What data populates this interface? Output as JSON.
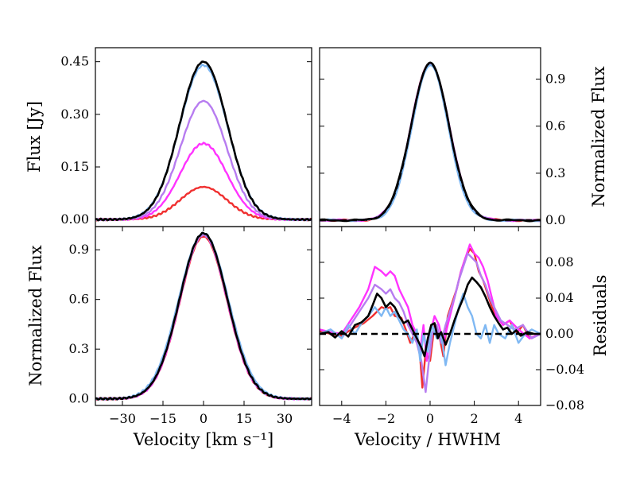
{
  "chart_data": [
    {
      "panel": "top-left",
      "type": "line",
      "xlabel": "",
      "ylabel": "Flux [Jy]",
      "xlim": [
        -40,
        40
      ],
      "ylim": [
        -0.02,
        0.49
      ],
      "yticks": [
        0.0,
        0.15,
        0.3,
        0.45
      ],
      "ytick_labels": [
        "0.00",
        "0.15",
        "0.30",
        "0.45"
      ],
      "series": [
        {
          "name": "red",
          "color": "#f03030",
          "profile": "gauss",
          "amp": 0.093,
          "sigma": 8.6
        },
        {
          "name": "magenta",
          "color": "#ff33ff",
          "profile": "gauss",
          "amp": 0.217,
          "sigma": 8.6
        },
        {
          "name": "purple",
          "color": "#b77cf0",
          "profile": "gauss",
          "amp": 0.338,
          "sigma": 8.6
        },
        {
          "name": "light-blue",
          "color": "#7fb8f3",
          "profile": "gauss",
          "amp": 0.44,
          "sigma": 8.9
        },
        {
          "name": "black",
          "color": "#000000",
          "profile": "gauss",
          "amp": 0.45,
          "sigma": 8.8
        }
      ]
    },
    {
      "panel": "top-right",
      "type": "line",
      "xlabel": "",
      "ylabel": "Normalized Flux",
      "xlim": [
        -5,
        5
      ],
      "ylim": [
        -0.04,
        1.1
      ],
      "yticks": [
        0.0,
        0.3,
        0.6,
        0.9
      ],
      "ytick_labels": [
        "0.0",
        "0.3",
        "0.6",
        "0.9"
      ],
      "series": [
        {
          "name": "red",
          "color": "#f03030",
          "profile": "gauss",
          "amp": 1.0,
          "sigma": 0.85
        },
        {
          "name": "magenta",
          "color": "#ff33ff",
          "profile": "gauss",
          "amp": 1.0,
          "sigma": 0.86
        },
        {
          "name": "purple",
          "color": "#b77cf0",
          "profile": "gauss",
          "amp": 1.0,
          "sigma": 0.85
        },
        {
          "name": "light-blue",
          "color": "#7fb8f3",
          "profile": "gauss",
          "amp": 0.99,
          "sigma": 0.82
        },
        {
          "name": "black",
          "color": "#000000",
          "profile": "gauss",
          "amp": 1.0,
          "sigma": 0.86
        },
        {
          "name": "gaussian-fit",
          "color": "#000000",
          "dashed": true,
          "profile": "gauss",
          "amp": 1.0,
          "sigma": 0.85
        }
      ]
    },
    {
      "panel": "bottom-left",
      "type": "line",
      "xlabel": "Velocity [km s⁻¹]",
      "ylabel": "Normalized Flux",
      "xlim": [
        -40,
        40
      ],
      "ylim": [
        -0.04,
        1.04
      ],
      "xticks": [
        -30,
        -15,
        0,
        15,
        30
      ],
      "xtick_labels": [
        "−30",
        "−15",
        "0",
        "15",
        "30"
      ],
      "yticks": [
        0.0,
        0.3,
        0.6,
        0.9
      ],
      "ytick_labels": [
        "0.0",
        "0.3",
        "0.6",
        "0.9"
      ],
      "series": [
        {
          "name": "red",
          "color": "#f03030",
          "profile": "gauss",
          "amp": 0.98,
          "sigma": 8.7
        },
        {
          "name": "magenta",
          "color": "#ff33ff",
          "profile": "gauss",
          "amp": 0.99,
          "sigma": 8.7
        },
        {
          "name": "purple",
          "color": "#b77cf0",
          "profile": "gauss",
          "amp": 0.99,
          "sigma": 8.8
        },
        {
          "name": "light-blue",
          "color": "#7fb8f3",
          "profile": "gauss",
          "amp": 1.0,
          "sigma": 9.1
        },
        {
          "name": "black",
          "color": "#000000",
          "profile": "gauss",
          "amp": 1.0,
          "sigma": 8.8
        }
      ]
    },
    {
      "panel": "bottom-right",
      "type": "line",
      "xlabel": "Velocity / HWHM",
      "ylabel": "Residuals",
      "xlim": [
        -5,
        5
      ],
      "ylim": [
        -0.08,
        0.12
      ],
      "xticks": [
        -4,
        -2,
        0,
        2,
        4
      ],
      "xtick_labels": [
        "−4",
        "−2",
        "0",
        "2",
        "4"
      ],
      "yticks": [
        -0.08,
        -0.04,
        0.0,
        0.04,
        0.08
      ],
      "ytick_labels": [
        "−0.08",
        "−0.04",
        "0.00",
        "0.04",
        "0.08"
      ],
      "series": [
        {
          "name": "red",
          "color": "#f03030",
          "points": [
            [
              -5,
              0.003
            ],
            [
              -4.5,
              0.0
            ],
            [
              -4,
              -0.002
            ],
            [
              -3.5,
              0.006
            ],
            [
              -3,
              0.012
            ],
            [
              -2.6,
              0.02
            ],
            [
              -2.2,
              0.03
            ],
            [
              -2,
              0.028
            ],
            [
              -1.8,
              0.03
            ],
            [
              -1.6,
              0.02
            ],
            [
              -1.3,
              0.018
            ],
            [
              -1.1,
              0.005
            ],
            [
              -0.9,
              -0.01
            ],
            [
              -0.7,
              0.0
            ],
            [
              -0.5,
              -0.01
            ],
            [
              -0.35,
              -0.06
            ],
            [
              -0.2,
              -0.02
            ],
            [
              0,
              -0.03
            ],
            [
              0.2,
              0.01
            ],
            [
              0.4,
              0.0
            ],
            [
              0.6,
              -0.025
            ],
            [
              0.8,
              0.02
            ],
            [
              1.0,
              0.035
            ],
            [
              1.2,
              0.05
            ],
            [
              1.4,
              0.07
            ],
            [
              1.6,
              0.085
            ],
            [
              1.8,
              0.095
            ],
            [
              2.0,
              0.09
            ],
            [
              2.2,
              0.07
            ],
            [
              2.4,
              0.06
            ],
            [
              2.6,
              0.045
            ],
            [
              2.8,
              0.03
            ],
            [
              3.0,
              0.02
            ],
            [
              3.3,
              0.01
            ],
            [
              3.6,
              0.015
            ],
            [
              3.9,
              0.0
            ],
            [
              4.2,
              0.01
            ],
            [
              4.5,
              -0.005
            ],
            [
              5,
              0.0
            ]
          ]
        },
        {
          "name": "magenta",
          "color": "#ff33ff",
          "points": [
            [
              -5,
              0.005
            ],
            [
              -4.5,
              0.002
            ],
            [
              -4,
              0.0
            ],
            [
              -3.6,
              0.015
            ],
            [
              -3.2,
              0.03
            ],
            [
              -2.8,
              0.05
            ],
            [
              -2.5,
              0.075
            ],
            [
              -2.2,
              0.07
            ],
            [
              -2.0,
              0.065
            ],
            [
              -1.8,
              0.07
            ],
            [
              -1.6,
              0.065
            ],
            [
              -1.4,
              0.05
            ],
            [
              -1.2,
              0.04
            ],
            [
              -1.0,
              0.03
            ],
            [
              -0.8,
              0.01
            ],
            [
              -0.6,
              0.0
            ],
            [
              -0.45,
              -0.02
            ],
            [
              -0.3,
              0.01
            ],
            [
              -0.15,
              -0.03
            ],
            [
              0,
              0.0
            ],
            [
              0.2,
              0.02
            ],
            [
              0.4,
              0.01
            ],
            [
              0.6,
              -0.01
            ],
            [
              0.8,
              0.01
            ],
            [
              1.0,
              0.03
            ],
            [
              1.2,
              0.05
            ],
            [
              1.4,
              0.07
            ],
            [
              1.6,
              0.085
            ],
            [
              1.8,
              0.1
            ],
            [
              2.0,
              0.09
            ],
            [
              2.2,
              0.085
            ],
            [
              2.4,
              0.075
            ],
            [
              2.6,
              0.06
            ],
            [
              2.8,
              0.04
            ],
            [
              3.0,
              0.02
            ],
            [
              3.3,
              0.01
            ],
            [
              3.6,
              0.015
            ],
            [
              4.0,
              0.005
            ],
            [
              4.5,
              -0.005
            ],
            [
              5,
              0.0
            ]
          ]
        },
        {
          "name": "purple",
          "color": "#b77cf0",
          "points": [
            [
              -5,
              0.0
            ],
            [
              -4.5,
              0.005
            ],
            [
              -4,
              -0.005
            ],
            [
              -3.6,
              0.01
            ],
            [
              -3.2,
              0.025
            ],
            [
              -2.8,
              0.04
            ],
            [
              -2.5,
              0.055
            ],
            [
              -2.2,
              0.05
            ],
            [
              -2.0,
              0.045
            ],
            [
              -1.8,
              0.05
            ],
            [
              -1.6,
              0.04
            ],
            [
              -1.4,
              0.035
            ],
            [
              -1.2,
              0.025
            ],
            [
              -1.0,
              0.01
            ],
            [
              -0.8,
              0.0
            ],
            [
              -0.6,
              -0.01
            ],
            [
              -0.4,
              -0.03
            ],
            [
              -0.2,
              -0.065
            ],
            [
              -0.05,
              -0.03
            ],
            [
              0.1,
              0.0
            ],
            [
              0.3,
              0.01
            ],
            [
              0.5,
              -0.01
            ],
            [
              0.7,
              0.01
            ],
            [
              0.9,
              0.025
            ],
            [
              1.1,
              0.04
            ],
            [
              1.3,
              0.06
            ],
            [
              1.5,
              0.075
            ],
            [
              1.7,
              0.09
            ],
            [
              1.9,
              0.085
            ],
            [
              2.1,
              0.08
            ],
            [
              2.3,
              0.065
            ],
            [
              2.5,
              0.055
            ],
            [
              2.7,
              0.04
            ],
            [
              2.9,
              0.03
            ],
            [
              3.2,
              0.015
            ],
            [
              3.5,
              0.01
            ],
            [
              3.8,
              0.005
            ],
            [
              4.2,
              0.01
            ],
            [
              4.6,
              -0.005
            ],
            [
              5,
              0.0
            ]
          ]
        },
        {
          "name": "light-blue",
          "color": "#7fb8f3",
          "points": [
            [
              -5,
              0.0
            ],
            [
              -4.5,
              0.005
            ],
            [
              -4,
              -0.005
            ],
            [
              -3.7,
              0.01
            ],
            [
              -3.4,
              0.0
            ],
            [
              -3.1,
              0.012
            ],
            [
              -2.8,
              0.02
            ],
            [
              -2.5,
              0.03
            ],
            [
              -2.2,
              0.02
            ],
            [
              -2.0,
              0.03
            ],
            [
              -1.8,
              0.02
            ],
            [
              -1.6,
              0.025
            ],
            [
              -1.4,
              0.015
            ],
            [
              -1.2,
              0.005
            ],
            [
              -1.0,
              0.0
            ],
            [
              -0.8,
              -0.01
            ],
            [
              -0.6,
              0.005
            ],
            [
              -0.45,
              -0.03
            ],
            [
              -0.3,
              0.0
            ],
            [
              -0.1,
              -0.02
            ],
            [
              0.1,
              0.01
            ],
            [
              0.3,
              -0.005
            ],
            [
              0.5,
              0.0
            ],
            [
              0.7,
              -0.035
            ],
            [
              0.9,
              -0.01
            ],
            [
              1.1,
              0.01
            ],
            [
              1.3,
              0.03
            ],
            [
              1.5,
              0.045
            ],
            [
              1.7,
              0.03
            ],
            [
              1.9,
              0.02
            ],
            [
              2.1,
              0.0
            ],
            [
              2.3,
              -0.005
            ],
            [
              2.5,
              0.01
            ],
            [
              2.7,
              -0.01
            ],
            [
              2.9,
              0.01
            ],
            [
              3.1,
              0.0
            ],
            [
              3.4,
              -0.005
            ],
            [
              3.7,
              0.01
            ],
            [
              4.0,
              -0.01
            ],
            [
              4.3,
              0.0
            ],
            [
              4.6,
              0.005
            ],
            [
              5,
              0.0
            ]
          ]
        },
        {
          "name": "black",
          "color": "#000000",
          "points": [
            [
              -5,
              0.0
            ],
            [
              -4.6,
              0.002
            ],
            [
              -4.3,
              -0.004
            ],
            [
              -4,
              0.003
            ],
            [
              -3.7,
              -0.003
            ],
            [
              -3.4,
              0.01
            ],
            [
              -3.1,
              0.013
            ],
            [
              -2.8,
              0.02
            ],
            [
              -2.6,
              0.032
            ],
            [
              -2.4,
              0.045
            ],
            [
              -2.2,
              0.04
            ],
            [
              -2.0,
              0.03
            ],
            [
              -1.8,
              0.035
            ],
            [
              -1.6,
              0.03
            ],
            [
              -1.4,
              0.02
            ],
            [
              -1.2,
              0.012
            ],
            [
              -1.0,
              0.015
            ],
            [
              -0.8,
              0.005
            ],
            [
              -0.6,
              -0.005
            ],
            [
              -0.4,
              -0.015
            ],
            [
              -0.25,
              -0.025
            ],
            [
              -0.1,
              -0.005
            ],
            [
              0.05,
              0.01
            ],
            [
              0.2,
              0.012
            ],
            [
              0.35,
              -0.005
            ],
            [
              0.5,
              0.002
            ],
            [
              0.7,
              -0.012
            ],
            [
              0.9,
              0.0
            ],
            [
              1.1,
              0.015
            ],
            [
              1.3,
              0.028
            ],
            [
              1.5,
              0.04
            ],
            [
              1.7,
              0.055
            ],
            [
              1.9,
              0.063
            ],
            [
              2.1,
              0.058
            ],
            [
              2.3,
              0.052
            ],
            [
              2.5,
              0.042
            ],
            [
              2.7,
              0.03
            ],
            [
              2.9,
              0.02
            ],
            [
              3.1,
              0.012
            ],
            [
              3.3,
              0.005
            ],
            [
              3.5,
              0.007
            ],
            [
              3.7,
              0.0
            ],
            [
              3.9,
              0.004
            ],
            [
              4.1,
              -0.002
            ],
            [
              4.4,
              0.002
            ],
            [
              4.7,
              0.0
            ],
            [
              5,
              0.0
            ]
          ]
        },
        {
          "name": "zero-line",
          "color": "#000000",
          "dashed": true,
          "points": [
            [
              -5,
              0.0
            ],
            [
              5,
              0.0
            ]
          ]
        }
      ]
    }
  ]
}
